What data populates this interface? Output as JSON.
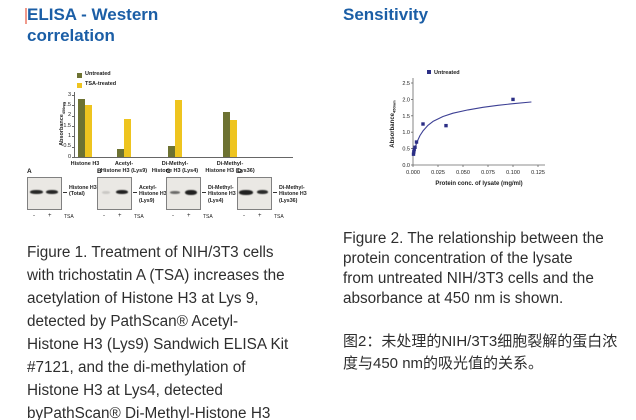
{
  "colors": {
    "title_blue": "#1b5ea6",
    "accent_pink": "#f09a8c",
    "axis_gray": "#666666",
    "caption_text": "#2e2e2e",
    "untreated_olive": "#6d7232",
    "tsa_yellow": "#eec41f",
    "scatter_navy": "#2b2e85",
    "curve_indigo": "#3c3f94"
  },
  "left": {
    "title": "ELISA - Western correlation",
    "figure1_caption": "Figure 1. Treatment of NIH/3T3 cells\nwith trichostatin A (TSA) increases the\nacetylation of Histone H3 at Lys 9,\ndetected by PathScan® Acetyl-\nHistone H3 (Lys9) Sandwich ELISA Kit\n#7121, and the di-methylation of\nHistone H3 at Lys4, detected\nbyPathScan® Di-Methyl-Histone H3"
  },
  "right": {
    "title": "Sensitivity",
    "figure2_caption_en": "Figure 2. The relationship between the\nprotein concentration of the lysate\nfrom untreated NIH/3T3 cells and the\nabsorbance at 450 nm is shown.",
    "figure2_caption_zh": "图2：未处理的NIH/3T3细胞裂解的蛋白浓\n度与450 nm的吸光值的关系。"
  },
  "chart_data": [
    {
      "id": "elisa-western-bars",
      "type": "bar",
      "categories": [
        "Histone H3",
        "Acetyl-\nHistone H3 (Lys9)",
        "Di-Methyl-\nHistone H3 (Lys4)",
        "Di-Methyl-\nHistone H3 (Lys36)"
      ],
      "series": [
        {
          "name": "Untreated",
          "color": "#6d7232",
          "values": [
            2.8,
            0.4,
            0.55,
            2.2
          ]
        },
        {
          "name": "TSA-treated",
          "color": "#eec41f",
          "values": [
            2.5,
            1.85,
            2.75,
            1.8
          ]
        }
      ],
      "ylabel": "Absorbance",
      "ylabel_sub": "450nm",
      "yticks": [
        "0",
        "0.5",
        "1",
        "1.5",
        "2",
        "2.5",
        "3"
      ],
      "ylim": [
        0,
        3
      ],
      "legend_position": "top-left",
      "grid": false
    },
    {
      "id": "sensitivity-scatter",
      "type": "scatter",
      "series": [
        {
          "name": "Untreated",
          "color": "#2b2e85",
          "points": [
            [
              0.0005,
              0.33
            ],
            [
              0.0008,
              0.4
            ],
            [
              0.0012,
              0.47
            ],
            [
              0.002,
              0.54
            ],
            [
              0.0035,
              0.7
            ],
            [
              0.01,
              1.25
            ],
            [
              0.033,
              1.2
            ],
            [
              0.1,
              2.0
            ]
          ]
        }
      ],
      "curve": {
        "color": "#3c3f94",
        "points": [
          [
            0.0,
            0.3
          ],
          [
            0.002,
            0.52
          ],
          [
            0.004,
            0.7
          ],
          [
            0.007,
            0.9
          ],
          [
            0.01,
            1.04
          ],
          [
            0.015,
            1.21
          ],
          [
            0.02,
            1.33
          ],
          [
            0.03,
            1.48
          ],
          [
            0.04,
            1.58
          ],
          [
            0.055,
            1.68
          ],
          [
            0.07,
            1.76
          ],
          [
            0.085,
            1.82
          ],
          [
            0.1,
            1.87
          ],
          [
            0.118,
            1.92
          ]
        ]
      },
      "xlabel": "Protein conc. of lysate (mg/ml)",
      "ylabel": "Absorbance",
      "ylabel_sub": "450nm",
      "xticks": [
        "0.000",
        "0.025",
        "0.050",
        "0.075",
        "0.100",
        "0.125"
      ],
      "yticks": [
        "0.0",
        "0.5",
        "1.0",
        "1.5",
        "2.0",
        "2.5"
      ],
      "xlim": [
        0,
        0.13
      ],
      "ylim": [
        0,
        2.5
      ],
      "legend_position": "top",
      "grid": false
    }
  ],
  "blots": {
    "minus": "-",
    "plus": "+",
    "tsa": "TSA",
    "panels": [
      {
        "letter": "A",
        "label": "Histone H3\n(Total)",
        "bands": [
          {
            "w": 13,
            "h": 4,
            "o": 0.92
          },
          {
            "w": 12,
            "h": 4,
            "o": 0.92
          }
        ]
      },
      {
        "letter": "B",
        "label": "Acetyl-\nHistone H3\n(Lys9)",
        "bands": [
          {
            "w": 8,
            "h": 3,
            "o": 0.15
          },
          {
            "w": 12,
            "h": 4,
            "o": 0.95
          }
        ]
      },
      {
        "letter": "C",
        "label": "Di-Methyl-\nHistone H3\n(Lys4)",
        "bands": [
          {
            "w": 10,
            "h": 3,
            "o": 0.6
          },
          {
            "w": 12,
            "h": 5,
            "o": 0.95
          }
        ]
      },
      {
        "letter": "D",
        "label": "Di-Methyl-\nHistone H3\n(Lys36)",
        "bands": [
          {
            "w": 14,
            "h": 5,
            "o": 0.95
          },
          {
            "w": 11,
            "h": 4,
            "o": 0.9
          }
        ]
      }
    ]
  }
}
